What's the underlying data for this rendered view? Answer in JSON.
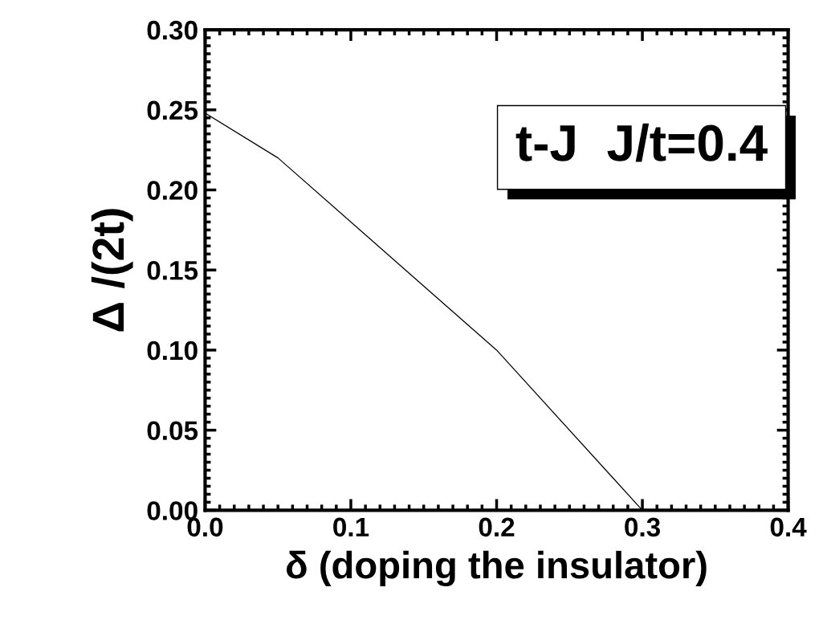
{
  "chart_data": {
    "type": "line",
    "xlabel": "δ (doping the insulator)",
    "ylabel": "Δ /(2t)",
    "x": [
      0.0,
      0.05,
      0.2,
      0.3
    ],
    "series": [
      {
        "color": "#000000",
        "values": [
          0.248,
          0.22,
          0.1,
          0.0
        ]
      }
    ],
    "xlim": [
      0.0,
      0.4
    ],
    "xticks": [
      {
        "value": 0.0,
        "label": "0.0"
      },
      0.1,
      0.2,
      0.3,
      0.4
    ],
    "ylim": [
      0.0,
      0.3
    ],
    "yticks": [
      {
        "value": 0.0,
        "label": "0.00"
      },
      0.05,
      {
        "value": 0.1,
        "label": "0.10"
      },
      0.15,
      {
        "value": 0.2,
        "label": "0.20"
      },
      0.25,
      {
        "value": 0.3,
        "label": "0.30"
      }
    ],
    "annotations": [
      "t-J  J/t=0.4"
    ],
    "grid": false,
    "legend": false
  }
}
